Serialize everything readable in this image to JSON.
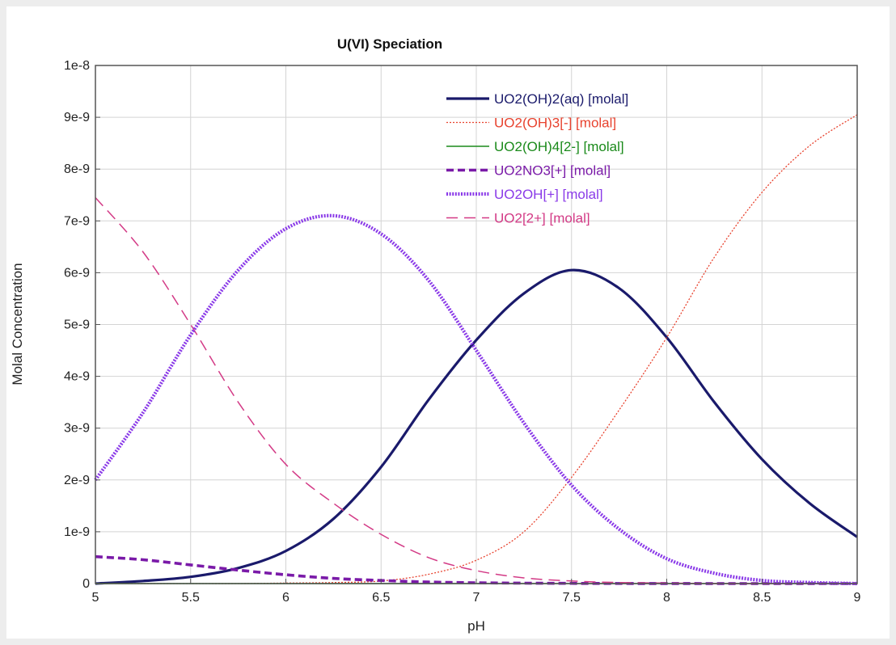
{
  "chart_data": {
    "type": "line",
    "title": "U(VI) Speciation",
    "xlabel": "pH",
    "ylabel": "Molal Concentration",
    "xlim": [
      5,
      9
    ],
    "ylim": [
      0,
      1e-08
    ],
    "xticks": [
      5,
      5.5,
      6,
      6.5,
      7,
      7.5,
      8,
      8.5,
      9
    ],
    "xtick_labels": [
      "5",
      "5.5",
      "6",
      "6.5",
      "7",
      "7.5",
      "8",
      "8.5",
      "9"
    ],
    "yticks": [
      0,
      1e-09,
      2e-09,
      3e-09,
      4e-09,
      5e-09,
      6e-09,
      7e-09,
      8e-09,
      9e-09,
      1e-08
    ],
    "ytick_labels": [
      "0",
      "1e-9",
      "2e-9",
      "3e-9",
      "4e-9",
      "5e-9",
      "6e-9",
      "7e-9",
      "8e-9",
      "9e-9",
      "1e-8"
    ],
    "grid": true,
    "legend_position": "top-right",
    "x": [
      5.0,
      5.25,
      5.5,
      5.75,
      6.0,
      6.25,
      6.5,
      6.75,
      7.0,
      7.25,
      7.5,
      7.75,
      8.0,
      8.25,
      8.5,
      8.75,
      9.0
    ],
    "series": [
      {
        "name": "UO2(OH)2(aq) [molal]",
        "color": "#1a1a6b",
        "style": "solid-thick",
        "values": [
          0.0,
          5e-11,
          1.3e-10,
          3e-10,
          6.3e-10,
          1.25e-09,
          2.25e-09,
          3.55e-09,
          4.7e-09,
          5.6e-09,
          6.05e-09,
          5.7e-09,
          4.75e-09,
          3.5e-09,
          2.4e-09,
          1.55e-09,
          9e-10
        ]
      },
      {
        "name": "UO2(OH)3[-] [molal]",
        "color": "#e8432f",
        "style": "dotted-thin",
        "values": [
          0.0,
          0.0,
          0.0,
          0.0,
          1e-11,
          2e-11,
          5e-11,
          1.8e-10,
          4.5e-10,
          1e-09,
          2.05e-09,
          3.35e-09,
          4.75e-09,
          6.3e-09,
          7.55e-09,
          8.45e-09,
          9.05e-09
        ]
      },
      {
        "name": "UO2(OH)4[2-] [molal]",
        "color": "#1a8a1a",
        "style": "solid-thin",
        "values": [
          0,
          0,
          0,
          0,
          0,
          0,
          0,
          0,
          0,
          0,
          0,
          0,
          0,
          0,
          0,
          0,
          0
        ]
      },
      {
        "name": "UO2NO3[+] [molal]",
        "color": "#7a1aa8",
        "style": "dashed-thick",
        "values": [
          5.2e-10,
          4.6e-10,
          3.6e-10,
          2.6e-10,
          1.7e-10,
          1e-10,
          6e-11,
          3e-11,
          1.5e-11,
          8e-12,
          4e-12,
          2e-12,
          1e-12,
          0,
          0,
          0,
          0
        ]
      },
      {
        "name": "UO2OH[+] [molal]",
        "color": "#8a3ae8",
        "style": "dotted-thick",
        "values": [
          2e-09,
          3.3e-09,
          4.8e-09,
          6.05e-09,
          6.85e-09,
          7.1e-09,
          6.75e-09,
          5.85e-09,
          4.5e-09,
          3.1e-09,
          1.9e-09,
          1.05e-09,
          4.8e-10,
          2e-10,
          6e-11,
          2e-11,
          0.0
        ]
      },
      {
        "name": "UO2[2+] [molal]",
        "color": "#d33a86",
        "style": "dashed-thin",
        "values": [
          7.45e-09,
          6.4e-09,
          5e-09,
          3.5e-09,
          2.3e-09,
          1.55e-09,
          9.5e-10,
          5e-10,
          2.5e-10,
          1.1e-10,
          5e-11,
          2e-11,
          1e-11,
          0,
          0,
          0,
          0
        ]
      }
    ]
  }
}
